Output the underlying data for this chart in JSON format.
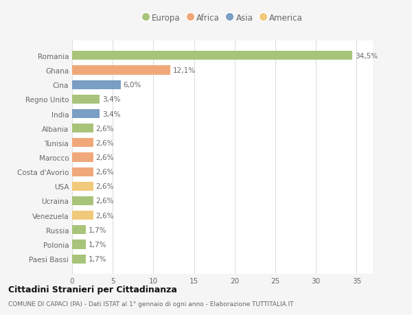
{
  "countries": [
    "Paesi Bassi",
    "Polonia",
    "Russia",
    "Venezuela",
    "Ucraina",
    "USA",
    "Costa d'Avorio",
    "Marocco",
    "Tunisia",
    "Albania",
    "India",
    "Regno Unito",
    "Cina",
    "Ghana",
    "Romania"
  ],
  "values": [
    1.7,
    1.7,
    1.7,
    2.6,
    2.6,
    2.6,
    2.6,
    2.6,
    2.6,
    2.6,
    3.4,
    3.4,
    6.0,
    12.1,
    34.5
  ],
  "labels": [
    "1,7%",
    "1,7%",
    "1,7%",
    "2,6%",
    "2,6%",
    "2,6%",
    "2,6%",
    "2,6%",
    "2,6%",
    "2,6%",
    "3,4%",
    "3,4%",
    "6,0%",
    "12,1%",
    "34,5%"
  ],
  "colors": [
    "#a8c47a",
    "#a8c47a",
    "#a8c47a",
    "#f0c97a",
    "#a8c47a",
    "#f0c97a",
    "#f0a87a",
    "#f0a87a",
    "#f0a87a",
    "#a8c47a",
    "#7a9ec4",
    "#a8c47a",
    "#7a9ec4",
    "#f0a87a",
    "#a8c47a"
  ],
  "legend_labels": [
    "Europa",
    "Africa",
    "Asia",
    "America"
  ],
  "legend_colors": [
    "#a8c47a",
    "#f0a87a",
    "#7a9ec4",
    "#f0c97a"
  ],
  "title": "Cittadini Stranieri per Cittadinanza",
  "subtitle": "COMUNE DI CAPACI (PA) - Dati ISTAT al 1° gennaio di ogni anno - Elaborazione TUTTITALIA.IT",
  "xlim": [
    0,
    37
  ],
  "xticks": [
    0,
    5,
    10,
    15,
    20,
    25,
    30,
    35
  ],
  "bg_color": "#f5f5f5",
  "bar_bg_color": "#ffffff",
  "grid_color": "#dddddd",
  "text_color": "#666666",
  "title_color": "#111111",
  "subtitle_color": "#666666"
}
